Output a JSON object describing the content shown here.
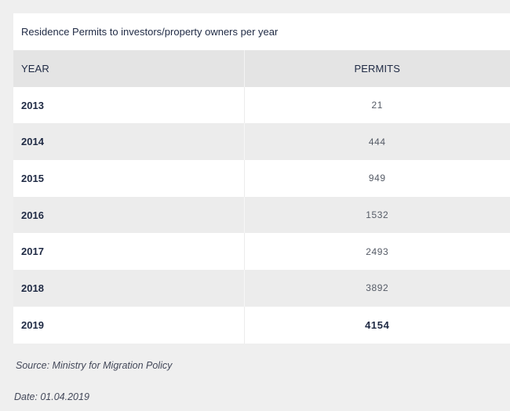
{
  "table": {
    "caption": "Residence Permits to investors/property owners per year",
    "headers": {
      "year": "YEAR",
      "permits": "PERMITS"
    },
    "rows": [
      {
        "year": "2013",
        "permits": "21"
      },
      {
        "year": "2014",
        "permits": "444"
      },
      {
        "year": "2015",
        "permits": "949"
      },
      {
        "year": "2016",
        "permits": "1532"
      },
      {
        "year": "2017",
        "permits": "2493"
      },
      {
        "year": "2018",
        "permits": "3892"
      },
      {
        "year": "2019",
        "permits": "4154"
      }
    ]
  },
  "footer": {
    "source": "Source: Ministry for Migration Policy",
    "date": "Date: 01.04.2019"
  }
}
